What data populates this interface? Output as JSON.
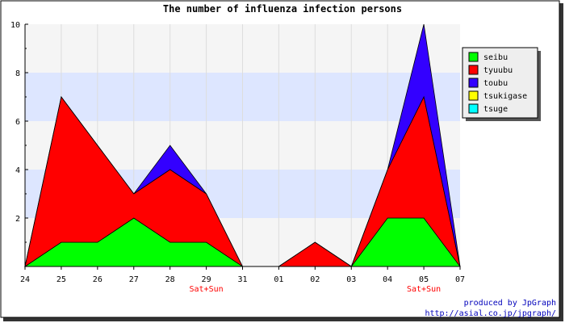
{
  "chart_data": {
    "type": "area",
    "stacked": true,
    "title": "The number of influenza infection persons",
    "x": [
      "24",
      "25",
      "26",
      "27",
      "28",
      "29",
      "31",
      "01",
      "02",
      "03",
      "04",
      "05",
      "07"
    ],
    "weekend_labels": [
      {
        "x": "29",
        "text": "Sat+Sun"
      },
      {
        "x": "05",
        "text": "Sat+Sun"
      }
    ],
    "series": [
      {
        "name": "seibu",
        "color": "#00ff00",
        "values": [
          0,
          1,
          1,
          2,
          1,
          1,
          0,
          0,
          0,
          0,
          2,
          2,
          0
        ]
      },
      {
        "name": "tyuubu",
        "color": "#ff0000",
        "values": [
          0,
          6,
          4,
          1,
          3,
          2,
          0,
          0,
          1,
          0,
          2,
          5,
          0
        ]
      },
      {
        "name": "toubu",
        "color": "#3300ff",
        "values": [
          0,
          0,
          0,
          0,
          1,
          0,
          0,
          0,
          0,
          0,
          0,
          3,
          0
        ]
      },
      {
        "name": "tsukigase",
        "color": "#ffff00",
        "values": [
          0,
          0,
          0,
          0,
          0,
          0,
          0,
          0,
          0,
          0,
          0,
          0,
          0
        ]
      },
      {
        "name": "tsuge",
        "color": "#00ffff",
        "values": [
          0,
          0,
          0,
          0,
          0,
          0,
          0,
          0,
          0,
          0,
          0,
          0,
          0
        ]
      }
    ],
    "yticks": [
      2,
      4,
      6,
      8,
      10
    ],
    "ylim": [
      0,
      10
    ],
    "xlabel": "",
    "ylabel": "",
    "grid": true,
    "legend": "top-right",
    "credit": {
      "line1": "produced by JpGraph",
      "line2": "http://asial.co.jp/jpgraph/"
    }
  }
}
